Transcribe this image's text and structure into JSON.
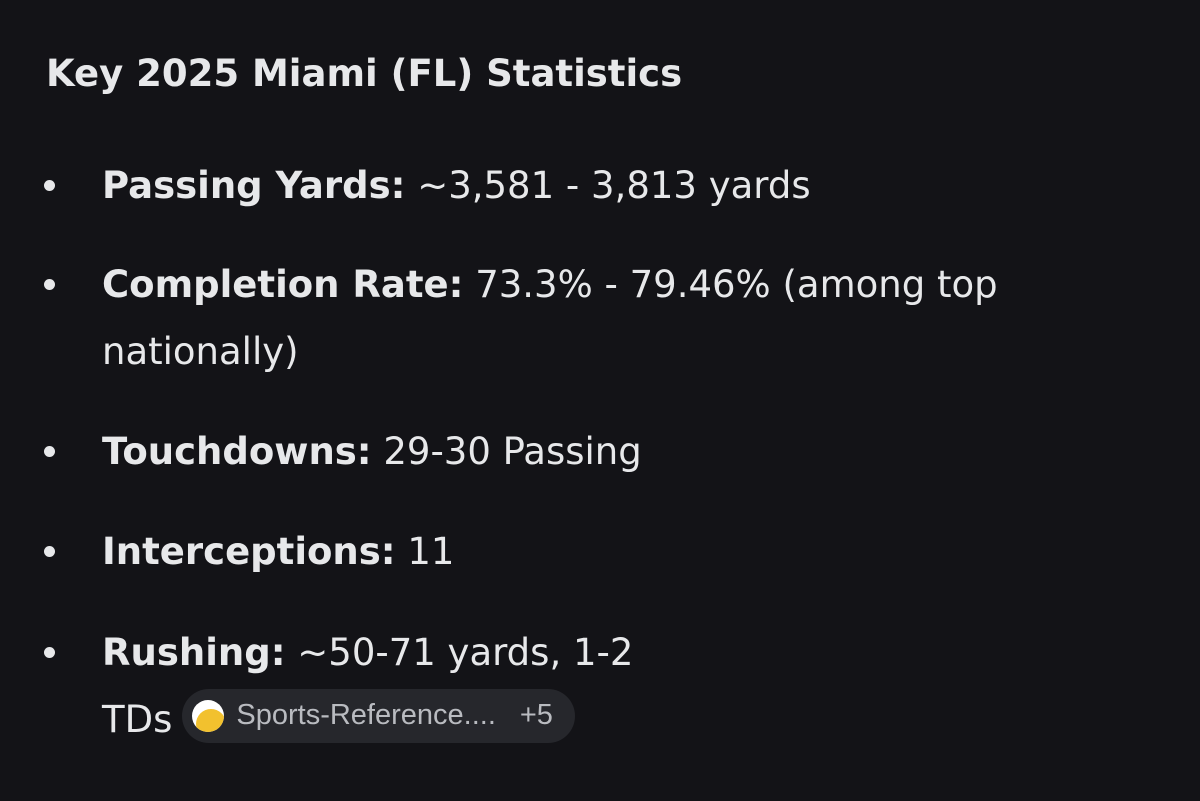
{
  "heading": "Key 2025 Miami (FL) Statistics",
  "stats": [
    {
      "label": "Passing Yards:",
      "value": " ~3,581 - 3,813 yards"
    },
    {
      "label": "Completion Rate:",
      "value": " 73.3% - 79.46% (among top nationally)"
    },
    {
      "label": "Touchdowns:",
      "value": " 29-30 Passing"
    },
    {
      "label": "Interceptions:",
      "value": " 11"
    },
    {
      "label": "Rushing:",
      "value": " ~50-71 yards, 1-2 TDs"
    }
  ],
  "source_chip": {
    "name": "Sports-Reference....",
    "more_count": "+5",
    "icon": "source-favicon-icon"
  }
}
